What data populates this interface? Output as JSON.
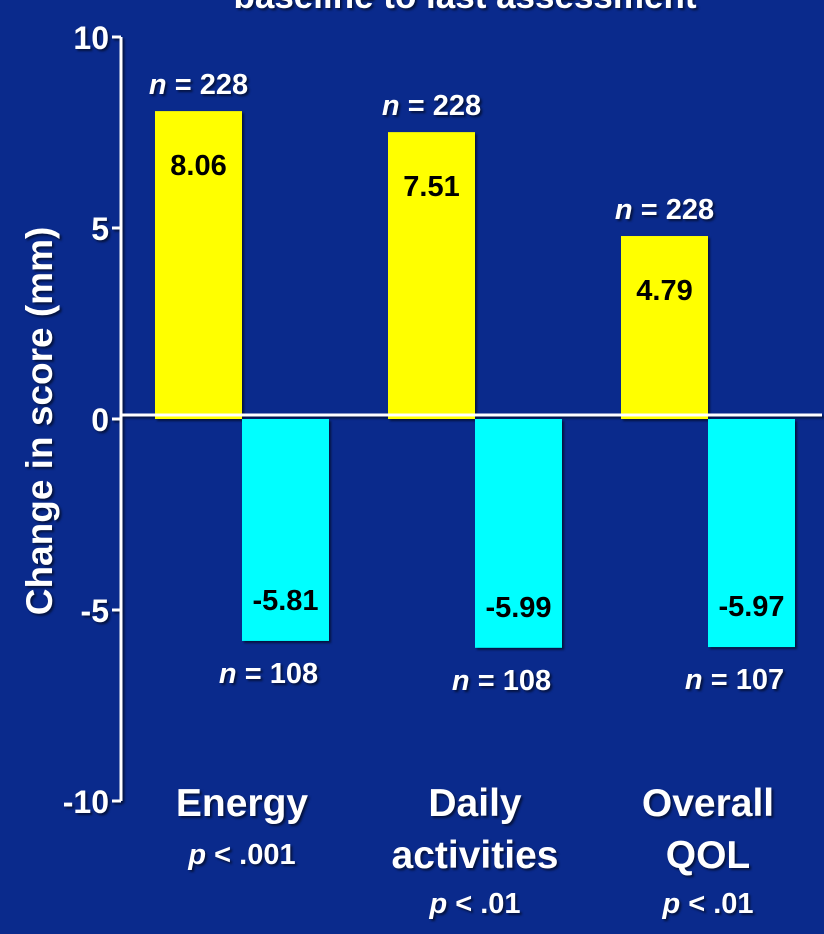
{
  "chart_data": {
    "type": "bar",
    "title": "baseline to last assessment",
    "ylabel": "Change in score (mm)",
    "xlabel": "",
    "ylim": [
      -10,
      10
    ],
    "yticks": [
      "10",
      "5",
      "0",
      "-5",
      "-10"
    ],
    "ytick_values": [
      10,
      5,
      0,
      -5,
      -10
    ],
    "categories": [
      {
        "lines": [
          "Energy"
        ],
        "p": "< .001"
      },
      {
        "lines": [
          "Daily",
          "activities"
        ],
        "p": "< .01"
      },
      {
        "lines": [
          "Overall",
          "QOL"
        ],
        "p": "< .01"
      }
    ],
    "p_symbol": "p",
    "n_symbol": "n",
    "series": [
      {
        "color": "#ffff00",
        "values": [
          8.06,
          7.51,
          4.79
        ],
        "value_labels": [
          "8.06",
          "7.51",
          "4.79"
        ],
        "n_labels": [
          "= 228",
          "= 228",
          "= 228"
        ]
      },
      {
        "color": "#00ffff",
        "values": [
          -5.81,
          -5.99,
          -5.97
        ],
        "value_labels": [
          "-5.81",
          "-5.99",
          "-5.97"
        ],
        "n_labels": [
          "= 108",
          "= 108",
          "= 107"
        ]
      }
    ],
    "grid": false,
    "legend": "none"
  },
  "colors": {
    "background": "#0a2a8c",
    "axis": "#ffffff"
  }
}
